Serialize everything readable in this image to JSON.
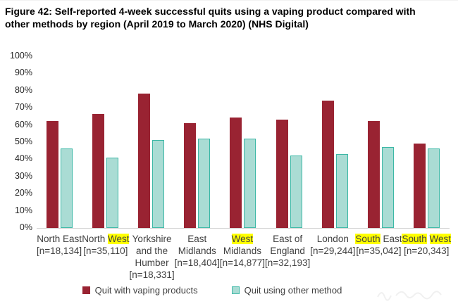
{
  "chart_data": {
    "type": "bar",
    "title": "Figure 42: Self-reported 4-week successful quits using a vaping product compared with other methods by region (April 2019 to March 2020) (NHS Digital)",
    "categories": [
      "North East",
      "North West",
      "Yorkshire and the Humber",
      "East Midlands",
      "West Midlands",
      "East of England",
      "London",
      "South East",
      "South West"
    ],
    "sample_sizes": [
      "[n=18,134]",
      "[n=35,110]",
      "[n=18,331]",
      "[n=18,404]",
      "[n=14,877]",
      "[n=32,193]",
      "[n=29,244]",
      "[n=35,042]",
      "[n=20,343]"
    ],
    "series": [
      {
        "name": "Quit with vaping products",
        "color": "#992332",
        "values": [
          62,
          66,
          78,
          61,
          64,
          63,
          74,
          62,
          49
        ]
      },
      {
        "name": "Quit using other method",
        "color": "#aadcd4",
        "border": "#3cb8a6",
        "values": [
          46,
          41,
          51,
          52,
          52,
          42,
          43,
          47,
          46
        ]
      }
    ],
    "xlabel": "",
    "ylabel": "",
    "ylim": [
      0,
      100
    ],
    "yticks": [
      "100%",
      "90%",
      "80%",
      "70%",
      "60%",
      "50%",
      "40%",
      "30%",
      "20%",
      "10%",
      "0%"
    ],
    "grid": false,
    "legend_position": "bottom",
    "highlight_color": "#ffff00",
    "baseline_color": "#d6d6d6",
    "x_label_lines": [
      [
        [
          {
            "t": "North East"
          }
        ]
      ],
      [
        [
          {
            "t": "North "
          },
          {
            "t": "West",
            "hl": true
          }
        ]
      ],
      [
        [
          {
            "t": "Yorkshire"
          }
        ],
        [
          {
            "t": "and the"
          }
        ],
        [
          {
            "t": "Humber"
          }
        ]
      ],
      [
        [
          {
            "t": "East"
          }
        ],
        [
          {
            "t": "Midlands"
          }
        ]
      ],
      [
        [
          {
            "t": "West",
            "hl": true
          }
        ],
        [
          {
            "t": "Midlands"
          }
        ]
      ],
      [
        [
          {
            "t": "East of"
          }
        ],
        [
          {
            "t": "England"
          }
        ]
      ],
      [
        [
          {
            "t": "London"
          }
        ]
      ],
      [
        [
          {
            "t": "South",
            "hl": true
          },
          {
            "t": " East"
          }
        ]
      ],
      [
        [
          {
            "t": "South",
            "hl": true
          },
          {
            "t": " "
          },
          {
            "t": "West",
            "hl": true
          }
        ]
      ]
    ]
  }
}
